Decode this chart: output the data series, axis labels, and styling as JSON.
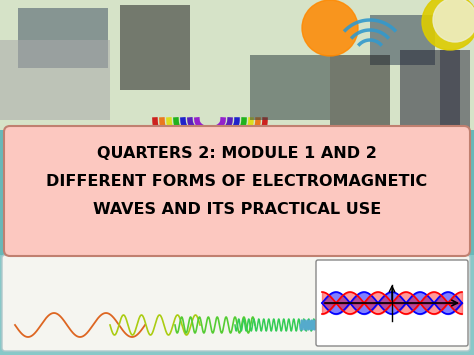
{
  "title_line1": "QUARTERS 2: MODULE 1 AND 2",
  "title_line2": "DIFFERENT FORMS OF ELECTROMAGNETIC",
  "title_line3": "WAVES AND ITS PRACTICAL USE",
  "bg_color": "#c8e8e8",
  "bg_top_color": "#d0e8c0",
  "box_face_color": "#fcc8c0",
  "box_edge_color": "#c08070",
  "text_color": "#000000",
  "title_fontsize": 11.5,
  "strip_bg_color": "#e8f0f0",
  "strip_border_color": "#b0c8cc",
  "wave_colors": [
    "#cc8833",
    "#aacc00",
    "#44cc44"
  ],
  "fig_width": 4.74,
  "fig_height": 3.55,
  "dpi": 100
}
